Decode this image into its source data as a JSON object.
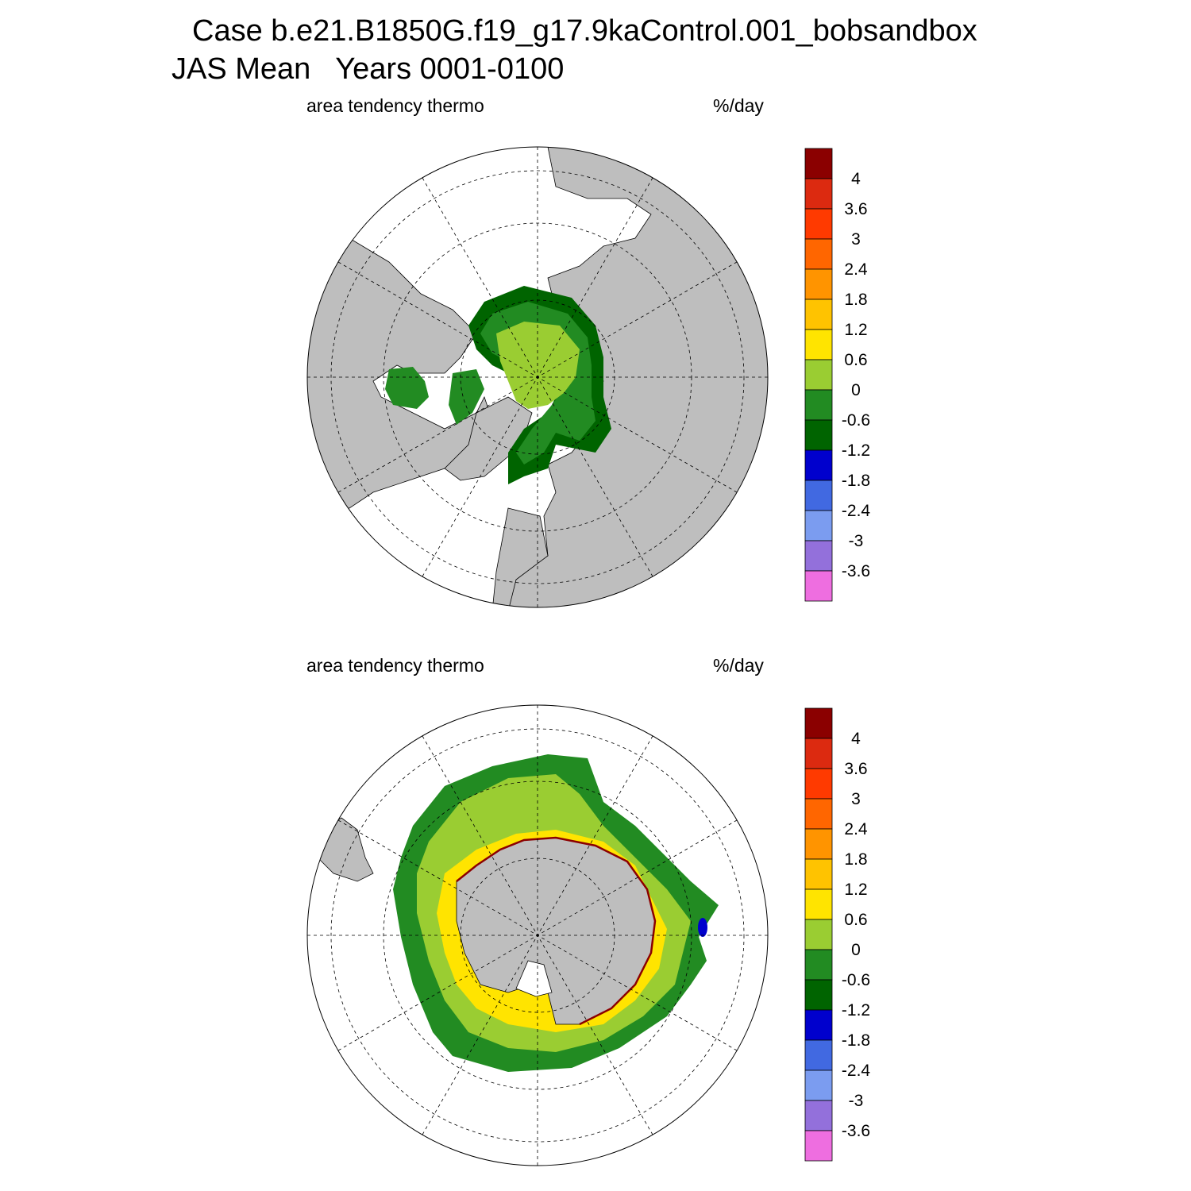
{
  "title": {
    "case": "Case b.e21.B1850G.f19_g17.9kaControl.001_bobsandbox",
    "period": "JAS Mean   Years 0001-0100"
  },
  "panels": [
    {
      "id": "north",
      "left_label": "area tendency thermo",
      "units": "%/day",
      "hemisphere": "Northern Hemisphere polar stereographic"
    },
    {
      "id": "south",
      "left_label": "area tendency thermo",
      "units": "%/day",
      "hemisphere": "Southern Hemisphere polar stereographic"
    }
  ],
  "colorbar": {
    "labels": [
      "4",
      "3.6",
      "3",
      "2.4",
      "1.8",
      "1.2",
      "0.6",
      "0",
      "-0.6",
      "-1.2",
      "-1.8",
      "-2.4",
      "-3",
      "-3.6"
    ],
    "colors_top_to_bottom": [
      "#8b0000",
      "#dc2a10",
      "#ff3a00",
      "#ff6600",
      "#ff9400",
      "#ffc300",
      "#ffe400",
      "#9acd32",
      "#228b22",
      "#006400",
      "#0000cd",
      "#4169e1",
      "#7b9cf0",
      "#9370db",
      "#ee6ee0"
    ]
  },
  "map_colors": {
    "land": "#bebebe",
    "ocean": "#ffffff"
  }
}
